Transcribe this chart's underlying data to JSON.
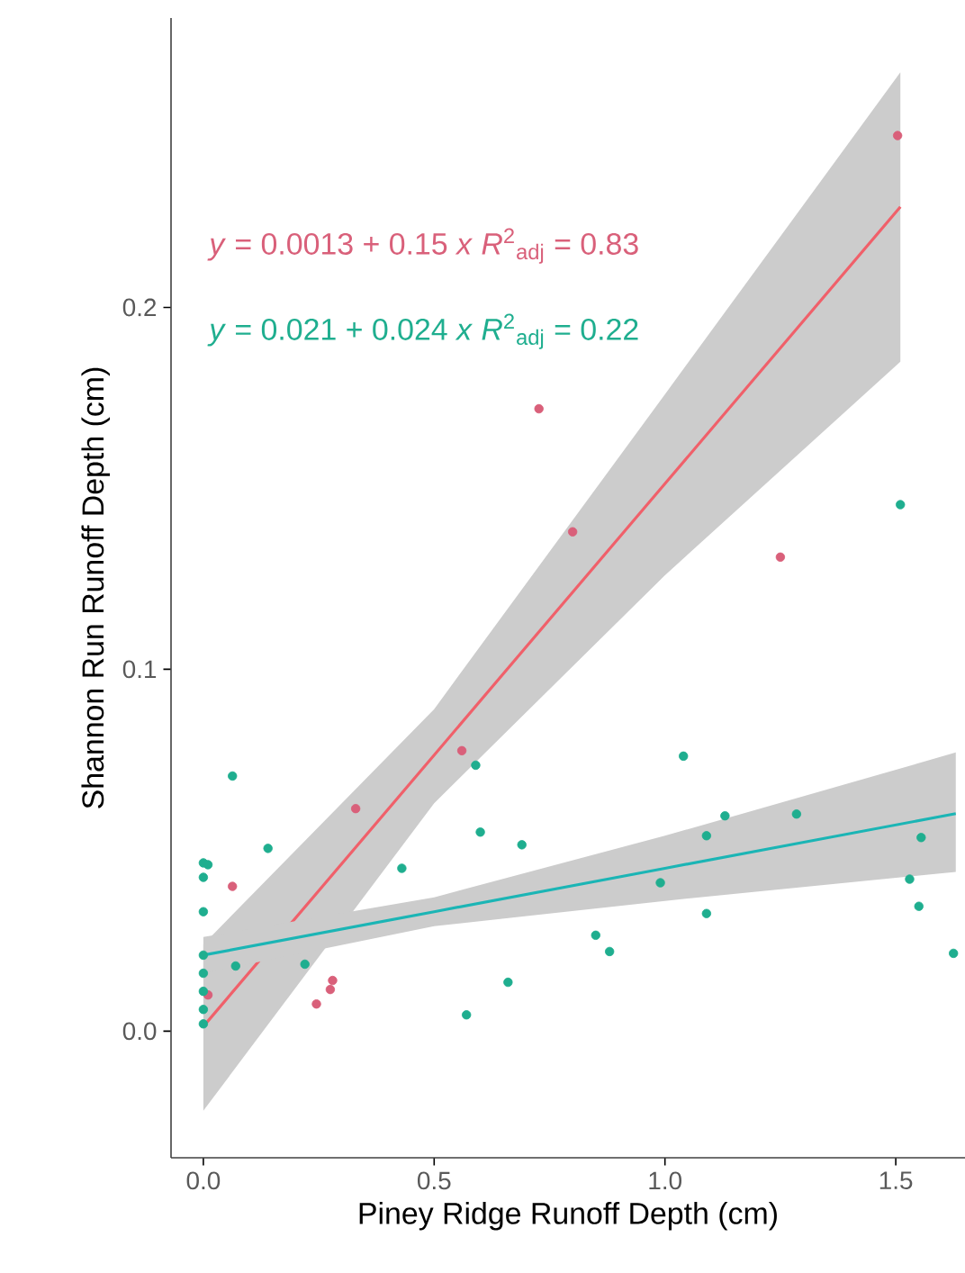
{
  "chart_data": {
    "type": "scatter",
    "xlabel": "Piney Ridge  Runoff Depth (cm)",
    "ylabel": "Shannon Run  Runoff Depth (cm)",
    "xlim": [
      -0.07,
      1.65
    ],
    "ylim": [
      -0.035,
      0.28
    ],
    "xticks": [
      {
        "value": 0,
        "label": "0.0"
      },
      0.5,
      {
        "value": 1,
        "label": "1.0"
      },
      1.5
    ],
    "yticks": [
      {
        "value": 0,
        "label": "0.0"
      },
      0.1,
      0.2
    ],
    "marker": "circle",
    "annotations": [
      "*y* = 0.0013 + 0.15 *x*   *R*$^{2}$$_{adj}$ = 0.83",
      "*y* = 0.021 + 0.024 *x*   *R*$^{2}$$_{adj}$ = 0.22"
    ],
    "series": [
      {
        "color": "#d9607a",
        "x": [
          1.504,
          0.727,
          0.8,
          1.25,
          0.33,
          0.56,
          0.063,
          0.28,
          0.275,
          0.245,
          0.01
        ],
        "values": [
          0.2475,
          0.172,
          0.138,
          0.131,
          0.0615,
          0.0775,
          0.04,
          0.014,
          0.0115,
          0.0075,
          0.01
        ]
      },
      {
        "color": "#1fae8f",
        "x": [
          1.51,
          0.063,
          1.04,
          0.59,
          0.14,
          0.6,
          0.69,
          0.43,
          1.13,
          1.285,
          1.09,
          1.555,
          0.99,
          1.53,
          1.55,
          1.09,
          1.625,
          0.85,
          0.88,
          0.66,
          0.57,
          0.22,
          0.07,
          0.0,
          0.0,
          0.0,
          0.0,
          0.0,
          0.0,
          0.0,
          0.0,
          0.01
        ],
        "values": [
          0.1455,
          0.0705,
          0.076,
          0.0735,
          0.0505,
          0.055,
          0.0515,
          0.045,
          0.0595,
          0.06,
          0.054,
          0.0535,
          0.041,
          0.042,
          0.0345,
          0.0325,
          0.0215,
          0.0265,
          0.022,
          0.0135,
          0.0045,
          0.0185,
          0.018,
          0.0465,
          0.0425,
          0.033,
          0.021,
          0.016,
          0.011,
          0.006,
          0.002,
          0.046
        ]
      },
      {
        "type": "line",
        "marker": "none",
        "color": "#f0606a",
        "x": [
          0.0,
          0.5,
          1.0,
          1.51
        ],
        "values": [
          0.0013,
          0.0763,
          0.1513,
          0.2278
        ],
        "lower": [
          -0.022,
          0.063,
          0.126,
          0.185
        ],
        "upper": [
          0.024,
          0.089,
          0.176,
          0.265
        ]
      },
      {
        "type": "line",
        "marker": "none",
        "color": "#1bb5b5",
        "x": [
          0.0,
          0.5,
          1.0,
          1.63
        ],
        "values": [
          0.021,
          0.033,
          0.045,
          0.0601
        ],
        "lower": [
          0.016,
          0.029,
          0.036,
          0.044
        ],
        "upper": [
          0.026,
          0.037,
          0.054,
          0.077
        ]
      }
    ]
  }
}
